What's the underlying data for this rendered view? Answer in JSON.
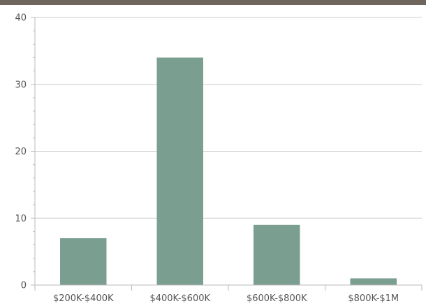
{
  "chart_data": {
    "type": "bar",
    "title": "",
    "xlabel": "",
    "ylabel": "",
    "categories": [
      "$200K-$400K",
      "$400K-$600K",
      "$600K-$800K",
      "$800K-$1M"
    ],
    "values": [
      7,
      34,
      9,
      1
    ],
    "ylim": [
      0,
      40
    ],
    "yticks": [
      "0",
      "10",
      "20",
      "30",
      "40"
    ],
    "grid": true,
    "legend": "none"
  },
  "colors": {
    "bar": "#7a9e90",
    "grid": "#cccccc",
    "axis": "#bbbbbb",
    "header": "#6e655c"
  }
}
